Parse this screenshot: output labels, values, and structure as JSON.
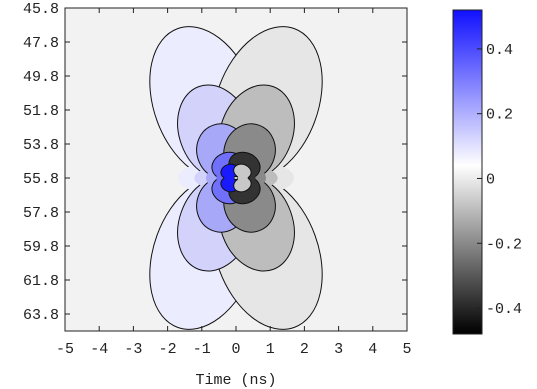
{
  "chart_data": {
    "type": "contour",
    "xlabel": "Time (ns)",
    "ylabel": "",
    "xlim": [
      -5,
      5
    ],
    "ylim": [
      45.8,
      64.8
    ],
    "x_ticks": [
      "-5",
      "-4",
      "-3",
      "-2",
      "-1",
      "0",
      "1",
      "2",
      "3",
      "4",
      "5"
    ],
    "y_ticks": [
      "45.8",
      "47.8",
      "49.8",
      "51.8",
      "53.8",
      "55.8",
      "57.8",
      "59.8",
      "61.8",
      "63.8"
    ],
    "y_direction": "increasing downward",
    "center": {
      "x": 0,
      "y": 55.8
    },
    "colorbar": {
      "range": [
        -0.48,
        0.52
      ],
      "ticks": [
        "0.4",
        "0.2",
        "0",
        "-0.2",
        "-0.4"
      ],
      "colors": {
        "max": "#1010ff",
        "mid": "#ffffff",
        "min": "#000000"
      }
    },
    "contour_levels": [
      {
        "level": 0.05,
        "fill": "#ececff",
        "half_width_ns": 2.4,
        "half_height": 8.5
      },
      {
        "level": 0.1,
        "fill": "#d2d2fb",
        "half_width_ns": 1.7,
        "half_height": 5.2
      },
      {
        "level": 0.2,
        "fill": "#a8a8f8",
        "half_width_ns": 1.2,
        "half_height": 3.0
      },
      {
        "level": 0.3,
        "fill": "#7070fa",
        "half_width_ns": 0.75,
        "half_height": 1.4
      },
      {
        "level": 0.45,
        "fill": "#1a1aff",
        "half_width_ns": 0.42,
        "half_height": 0.75
      },
      {
        "level": -0.05,
        "fill": "#e6e6e6",
        "half_width_ns": 2.4,
        "half_height": 8.5
      },
      {
        "level": -0.1,
        "fill": "#bdbdbd",
        "half_width_ns": 1.7,
        "half_height": 5.2
      },
      {
        "level": -0.2,
        "fill": "#8a8a8a",
        "half_width_ns": 1.2,
        "half_height": 3.0
      },
      {
        "level": -0.3,
        "fill": "#333333",
        "half_width_ns": 0.75,
        "half_height": 1.4
      },
      {
        "level": -0.45,
        "fill": "#c8c8c8",
        "half_width_ns": 0.42,
        "half_height": 0.75
      }
    ]
  }
}
